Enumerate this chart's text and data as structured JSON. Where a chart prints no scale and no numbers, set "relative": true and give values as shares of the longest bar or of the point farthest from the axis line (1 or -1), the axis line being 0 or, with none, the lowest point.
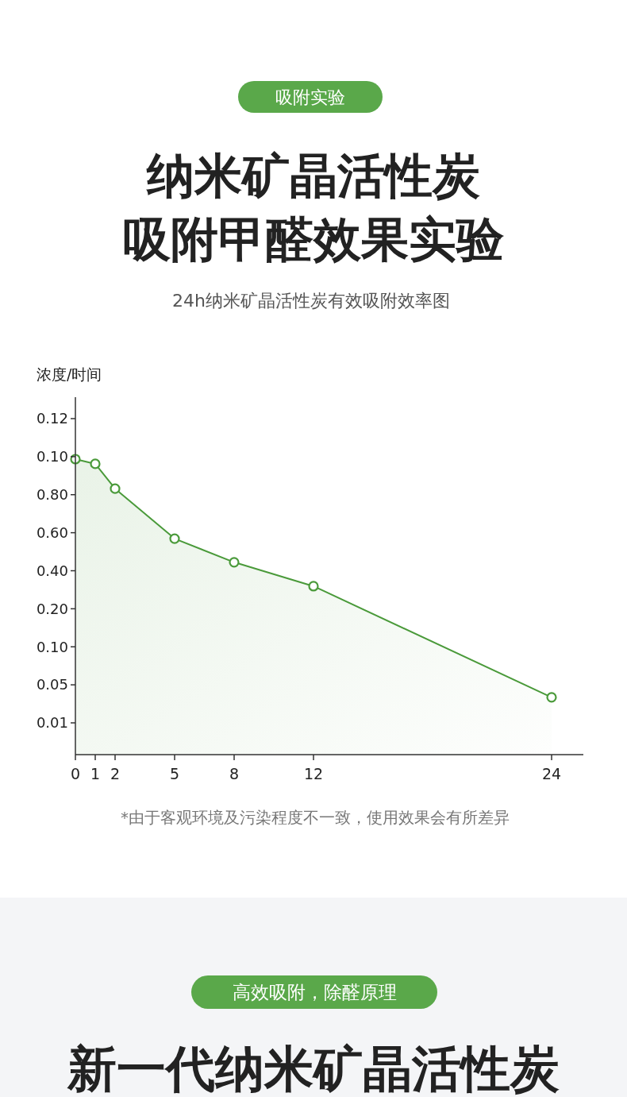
{
  "chart_data": {
    "type": "area",
    "title": "纳米矿晶活性炭吸附甲醛效果实验",
    "subtitle": "24h纳米矿晶活性炭有效吸附效率图",
    "annotations": [
      "吸附实验",
      "*由于客观环境及污染程度不一致，使用效果会有所差异",
      "高效吸附，除醛原理",
      "新一代纳米矿晶活性炭",
      "浓度/时间",
      "0.12",
      "0.10",
      "0.80",
      "0.60",
      "0.40",
      "0.20",
      "0.10",
      "0.05",
      "0.01"
    ],
    "relative": true,
    "x": [
      0,
      1,
      2,
      5,
      8,
      12,
      24
    ],
    "series": [
      {
        "color": "#4a9a3a",
        "values": [
          1,
          0.984,
          0.9,
          0.731,
          0.651,
          0.57,
          0.194
        ]
      }
    ],
    "xlim": [
      0,
      25.6
    ],
    "xticks": [
      0,
      1,
      2,
      5,
      8,
      12,
      24
    ],
    "marker": "circle"
  }
}
